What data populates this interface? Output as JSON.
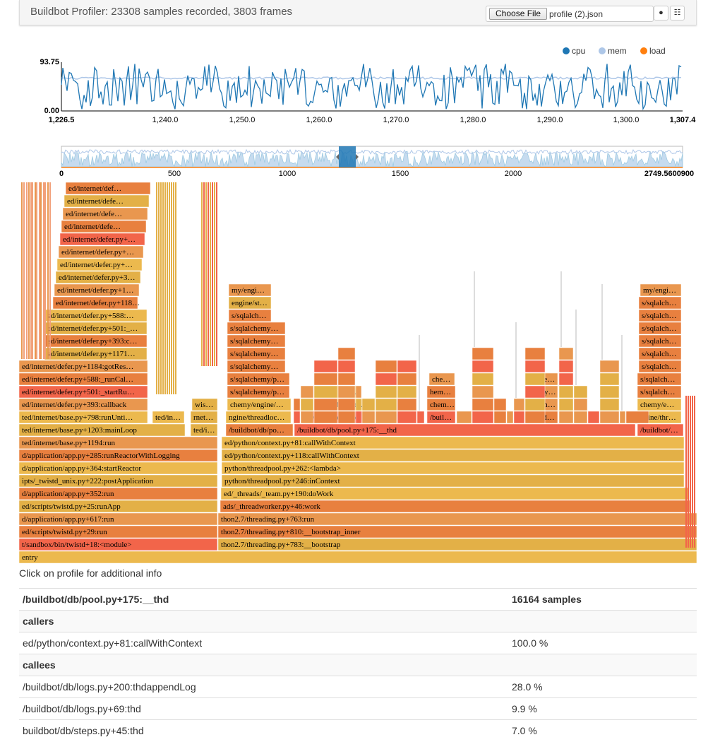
{
  "header": {
    "title": "Buildbot Profiler: 23308 samples recorded, 3803 frames",
    "choose_file_label": "Choose File",
    "file_name": "profile (2).json",
    "record_icon": "record-icon",
    "settings_icon": "sliders-icon"
  },
  "chart_data": {
    "type": "line",
    "legend": [
      {
        "name": "cpu",
        "color": "#1f77b4"
      },
      {
        "name": "mem",
        "color": "#aec7e8"
      },
      {
        "name": "load",
        "color": "#ff7f0e"
      }
    ],
    "ylim": [
      0.0,
      93.75
    ],
    "y_tick_labels": [
      "93.75",
      "0.00"
    ],
    "xlim": [
      1226.5,
      1307.4
    ],
    "x_tick_labels": [
      "1,226.5",
      "1,240.0",
      "1,250.0",
      "1,260.0",
      "1,270.0",
      "1,280.0",
      "1,290.0",
      "1,300.0",
      "1,307.4"
    ],
    "mem_level": 68,
    "overview": {
      "xlim": [
        0,
        2749.56
      ],
      "x_tick_labels": [
        "0",
        "500",
        "1000",
        "1500",
        "2000",
        "2749.5600900"
      ],
      "brush_range": [
        1226.5,
        1307.4
      ]
    }
  },
  "flame": {
    "colors": [
      "#f2654a",
      "#e8803f",
      "#e9974f",
      "#e3b047",
      "#ecb94e",
      "#dab84a"
    ],
    "root": "entry",
    "left_stack": [
      "t/sandbox/bin/twistd+18:<module>",
      "ed/scripts/twistd.py+29:run",
      "d/application/app.py+617:run",
      "ed/scripts/twistd.py+25:runApp",
      "d/application/app.py+352:run",
      "ipts/_twistd_unix.py+222:postApplication",
      "d/application/app.py+364:startReactor",
      "d/application/app.py+285:runReactorWithLogging",
      "ted/internet/base.py+1194:run",
      "ted/internet/base.py+1203:mainLoop",
      "ted/internet/base.py+798:runUnti…",
      "ed/internet/defer.py+393:callback",
      "ed/internet/defer.py+501:_startRu…",
      "ed/internet/defer.py+588:_runCal…",
      "ed/internet/defer.py+1184:gotRes…",
      "ed/internet/defer.py+1171…",
      "ed/internet/defer.py+393:c…",
      "ed/internet/defer.py+501:_…",
      "ed/internet/defer.py+588:…",
      "ed/internet/defer.py+118…",
      "ed/internet/defer.py+1…",
      "ed/internet/defer.py+3…",
      "ed/internet/defer.py+…",
      "ed/internet/defer.py+…",
      "ed/internet/defer.py+…",
      "ed/internet/defe…",
      "ed/internet/defe…",
      "ed/internet/defe…",
      "ed/internet/def…"
    ],
    "right_stack": [
      "thon2.7/threading.py+783:__bootstrap",
      "thon2.7/threading.py+810:__bootstrap_inner",
      "thon2.7/threading.py+763:run",
      "ads/_threadworker.py+46:work",
      "ed/_threads/_team.py+190:doWork",
      "python/threadpool.py+246:inContext",
      "python/threadpool.py+262:<lambda>",
      "ed/python/context.py+118:callWithContext",
      "ed/python/context.py+81:callWithContext",
      "/buildbot/db/pool.py+175:__thd"
    ],
    "misc_labels": {
      "ted_in_1": "ted/in…",
      "ted_in_2": "ted/i…",
      "rnet": "rnet…",
      "wis": "wis…",
      "pool_left": "/buildbot/db/po…",
      "pool_right": "/buildbot/…",
      "logs_mid": "/buildbot/db/lo…",
      "buil_a": "/buil…",
      "bu_a": "/buildbo…",
      "bu_b": "/bu…",
      "ngine_thread": "ngine/threadloc…",
      "chemy_engine": "chemy/engine/…",
      "sqlalch_p1": "s/sqlalchemy/p…",
      "sqlalch_p2": "s/sqlalchemy/p…",
      "sqlalch_1": "s/sqlalchemy…",
      "sqlalch_2": "s/sqlalchemy…",
      "sqlalch_3": "s/sqlalchemy…",
      "sqlalch_4": "s/sqlalchemy…",
      "sqlalch_5": "s/sqlalch…",
      "engine_st": "engine/st…",
      "my_engi": "my/engi…",
      "che_1": "che…",
      "hem_1": "hem…",
      "chem_1": "chem…",
      "buil_b": "/buil…",
      "che_2": "che…",
      "hemy": "hemy…",
      "chem_2": "chem…",
      "build": "build…",
      "r_chemy_e": "chemy/e…",
      "r_ngine_thr": "ngine/thr…",
      "r_my_engi": "my/engi…",
      "r_sqlalch": "s/sqlalch…"
    }
  },
  "hint": "Click on profile for additional info",
  "details": {
    "frame_name": "/buildbot/db/pool.py+175:__thd",
    "samples": "16164 samples",
    "callers_label": "callers",
    "callers": [
      {
        "name": "ed/python/context.py+81:callWithContext",
        "pct": "100.0 %"
      }
    ],
    "callees_label": "callees",
    "callees": [
      {
        "name": "/buildbot/db/logs.py+200:thdappendLog",
        "pct": "28.0 %"
      },
      {
        "name": "/buildbot/db/logs.py+69:thd",
        "pct": "9.9 %"
      },
      {
        "name": "buildbot/db/steps.py+45:thd",
        "pct": "7.0 %"
      }
    ]
  }
}
